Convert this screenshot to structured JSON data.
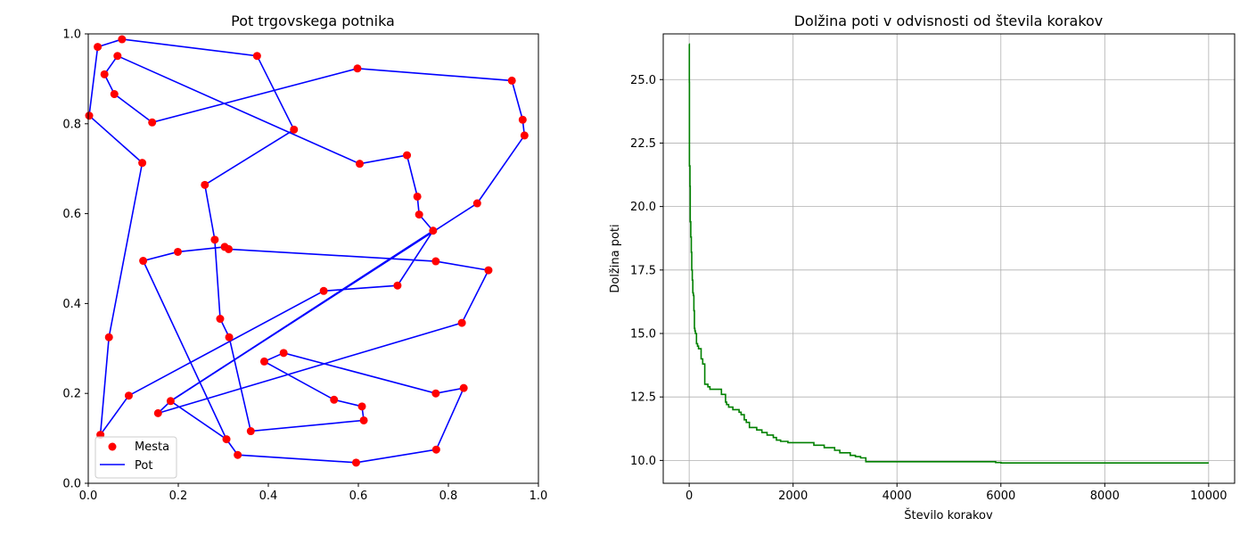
{
  "chart_data": [
    {
      "type": "scatter",
      "title": "Pot trgovskega potnika",
      "xlabel": "",
      "ylabel": "",
      "xlim": [
        0.0,
        1.0
      ],
      "ylim": [
        0.0,
        1.0
      ],
      "xticks": [
        0.0,
        0.2,
        0.4,
        0.6,
        0.8,
        1.0
      ],
      "yticks": [
        0.0,
        0.2,
        0.4,
        0.6,
        0.8,
        1.0
      ],
      "xtick_labels": [
        "0.0",
        "0.2",
        "0.4",
        "0.6",
        "0.8",
        "1.0"
      ],
      "ytick_labels": [
        "0.0",
        "0.2",
        "0.4",
        "0.6",
        "0.8",
        "1.0"
      ],
      "grid": false,
      "legend_position": "lower-left",
      "legend": {
        "cities_label": "Mesta",
        "route_label": "Pot"
      },
      "colors": {
        "cities": "#ff0000",
        "route": "#0000ff"
      },
      "route": [
        [
          0.002,
          0.818
        ],
        [
          0.12,
          0.713
        ],
        [
          0.046,
          0.325
        ],
        [
          0.027,
          0.108
        ],
        [
          0.09,
          0.195
        ],
        [
          0.523,
          0.428
        ],
        [
          0.687,
          0.44
        ],
        [
          0.766,
          0.562
        ],
        [
          0.735,
          0.598
        ],
        [
          0.731,
          0.638
        ],
        [
          0.708,
          0.73
        ],
        [
          0.603,
          0.711
        ],
        [
          0.065,
          0.951
        ],
        [
          0.036,
          0.91
        ],
        [
          0.058,
          0.866
        ],
        [
          0.142,
          0.803
        ],
        [
          0.598,
          0.923
        ],
        [
          0.941,
          0.896
        ],
        [
          0.965,
          0.809
        ],
        [
          0.969,
          0.774
        ],
        [
          0.864,
          0.623
        ],
        [
          0.183,
          0.183
        ],
        [
          0.307,
          0.098
        ],
        [
          0.332,
          0.063
        ],
        [
          0.595,
          0.046
        ],
        [
          0.773,
          0.075
        ],
        [
          0.834,
          0.212
        ],
        [
          0.772,
          0.2
        ],
        [
          0.434,
          0.29
        ],
        [
          0.391,
          0.271
        ],
        [
          0.546,
          0.186
        ],
        [
          0.608,
          0.171
        ],
        [
          0.612,
          0.14
        ],
        [
          0.361,
          0.116
        ],
        [
          0.313,
          0.325
        ],
        [
          0.293,
          0.366
        ],
        [
          0.281,
          0.542
        ],
        [
          0.259,
          0.664
        ],
        [
          0.457,
          0.787
        ],
        [
          0.375,
          0.951
        ],
        [
          0.075,
          0.988
        ],
        [
          0.021,
          0.971
        ],
        [
          0.002,
          0.818
        ]
      ],
      "cities": [
        [
          0.002,
          0.818
        ],
        [
          0.12,
          0.713
        ],
        [
          0.046,
          0.325
        ],
        [
          0.027,
          0.108
        ],
        [
          0.09,
          0.195
        ],
        [
          0.523,
          0.428
        ],
        [
          0.687,
          0.44
        ],
        [
          0.766,
          0.562
        ],
        [
          0.735,
          0.598
        ],
        [
          0.731,
          0.638
        ],
        [
          0.708,
          0.73
        ],
        [
          0.603,
          0.711
        ],
        [
          0.065,
          0.951
        ],
        [
          0.036,
          0.91
        ],
        [
          0.058,
          0.866
        ],
        [
          0.142,
          0.803
        ],
        [
          0.598,
          0.923
        ],
        [
          0.941,
          0.896
        ],
        [
          0.965,
          0.809
        ],
        [
          0.969,
          0.774
        ],
        [
          0.864,
          0.623
        ],
        [
          0.183,
          0.183
        ],
        [
          0.155,
          0.156
        ],
        [
          0.83,
          0.357
        ],
        [
          0.889,
          0.474
        ],
        [
          0.772,
          0.494
        ],
        [
          0.312,
          0.521
        ],
        [
          0.303,
          0.526
        ],
        [
          0.199,
          0.515
        ],
        [
          0.122,
          0.495
        ],
        [
          0.307,
          0.098
        ],
        [
          0.332,
          0.063
        ],
        [
          0.595,
          0.046
        ],
        [
          0.773,
          0.075
        ],
        [
          0.834,
          0.212
        ],
        [
          0.772,
          0.2
        ],
        [
          0.434,
          0.29
        ],
        [
          0.391,
          0.271
        ],
        [
          0.546,
          0.186
        ],
        [
          0.608,
          0.171
        ],
        [
          0.612,
          0.14
        ],
        [
          0.361,
          0.116
        ],
        [
          0.313,
          0.325
        ],
        [
          0.293,
          0.366
        ],
        [
          0.281,
          0.542
        ],
        [
          0.259,
          0.664
        ],
        [
          0.457,
          0.787
        ],
        [
          0.375,
          0.951
        ],
        [
          0.075,
          0.988
        ],
        [
          0.021,
          0.971
        ]
      ],
      "route_extra_segments": [
        [
          [
            0.183,
            0.183
          ],
          [
            0.766,
            0.562
          ]
        ],
        [
          [
            0.155,
            0.156
          ],
          [
            0.83,
            0.357
          ]
        ],
        [
          [
            0.83,
            0.357
          ],
          [
            0.889,
            0.474
          ]
        ],
        [
          [
            0.889,
            0.474
          ],
          [
            0.772,
            0.494
          ]
        ],
        [
          [
            0.772,
            0.494
          ],
          [
            0.312,
            0.521
          ]
        ],
        [
          [
            0.312,
            0.521
          ],
          [
            0.303,
            0.526
          ]
        ],
        [
          [
            0.303,
            0.526
          ],
          [
            0.199,
            0.515
          ]
        ],
        [
          [
            0.199,
            0.515
          ],
          [
            0.122,
            0.495
          ]
        ],
        [
          [
            0.122,
            0.495
          ],
          [
            0.307,
            0.098
          ]
        ],
        [
          [
            0.155,
            0.156
          ],
          [
            0.183,
            0.183
          ]
        ]
      ]
    },
    {
      "type": "line",
      "title": "Dolžina poti v odvisnosti od števila korakov",
      "xlabel": "Število korakov",
      "ylabel": "Dolžina poti",
      "xlim": [
        -500,
        10500
      ],
      "ylim": [
        9.1,
        26.8
      ],
      "xticks": [
        0,
        2000,
        4000,
        6000,
        8000,
        10000
      ],
      "yticks": [
        10.0,
        12.5,
        15.0,
        17.5,
        20.0,
        22.5,
        25.0
      ],
      "xtick_labels": [
        "0",
        "2000",
        "4000",
        "6000",
        "8000",
        "10000"
      ],
      "ytick_labels": [
        "10.0",
        "12.5",
        "15.0",
        "17.5",
        "20.0",
        "22.5",
        "25.0"
      ],
      "grid": true,
      "colors": {
        "line": "#008000",
        "grid": "#b0b0b0"
      },
      "series": [
        {
          "x": [
            0,
            2,
            5,
            10,
            15,
            20,
            30,
            40,
            50,
            60,
            70,
            80,
            90,
            100,
            110,
            120,
            140,
            160,
            180,
            200,
            230,
            260,
            300,
            320,
            340,
            360,
            400,
            450,
            500,
            560,
            620,
            700,
            720,
            760,
            800,
            840,
            900,
            960,
            1000,
            1060,
            1100,
            1160,
            1200,
            1300,
            1400,
            1500,
            1560,
            1620,
            1680,
            1760,
            1900,
            2200,
            2400,
            2500,
            2600,
            2800,
            2900,
            3000,
            3100,
            3200,
            3300,
            3400,
            3800,
            5900,
            6000,
            10000
          ],
          "y": [
            26.4,
            24.9,
            21.6,
            21.6,
            20.8,
            19.4,
            18.8,
            18.2,
            17.5,
            17.1,
            16.6,
            16.5,
            15.9,
            15.2,
            15.1,
            15.0,
            14.6,
            14.5,
            14.4,
            14.4,
            14.0,
            13.8,
            13.0,
            13.0,
            13.0,
            12.9,
            12.8,
            12.8,
            12.8,
            12.8,
            12.6,
            12.3,
            12.2,
            12.1,
            12.1,
            12.0,
            12.0,
            11.9,
            11.8,
            11.6,
            11.5,
            11.3,
            11.3,
            11.2,
            11.1,
            11.0,
            11.0,
            10.9,
            10.8,
            10.75,
            10.7,
            10.7,
            10.6,
            10.6,
            10.5,
            10.4,
            10.3,
            10.3,
            10.2,
            10.15,
            10.1,
            9.95,
            9.95,
            9.92,
            9.9,
            9.9
          ]
        }
      ]
    }
  ]
}
